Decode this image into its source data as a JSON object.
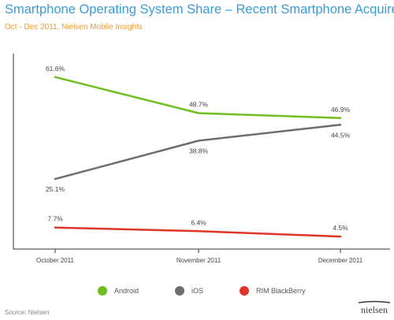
{
  "title": "Smartphone Operating System Share – Recent Smartphone Acquirers",
  "subtitle": "Oct - Dec 2011, Nielsen Mobile Insights",
  "source": "Source: Nielsen",
  "logo_text": "nielsen",
  "chart_data": {
    "type": "line",
    "categories": [
      "October 2011",
      "November 2011",
      "December 2011"
    ],
    "ylim": [
      0,
      70
    ],
    "grid": false,
    "legend": "bottom",
    "series": [
      {
        "name": "Android",
        "values": [
          61.6,
          48.7,
          46.9
        ],
        "labels": [
          "61.6%",
          "48.7%",
          "46.9%"
        ],
        "color": "#6fbe1f"
      },
      {
        "name": "iOS",
        "values": [
          25.1,
          38.8,
          44.5
        ],
        "labels": [
          "25.1%",
          "38.8%",
          "44.5%"
        ],
        "color": "#6d6d6d"
      },
      {
        "name": "RIM BlackBerry",
        "values": [
          7.7,
          6.4,
          4.5
        ],
        "labels": [
          "7.7%",
          "6.4%",
          "4.5%"
        ],
        "color": "#e0352b"
      }
    ]
  }
}
